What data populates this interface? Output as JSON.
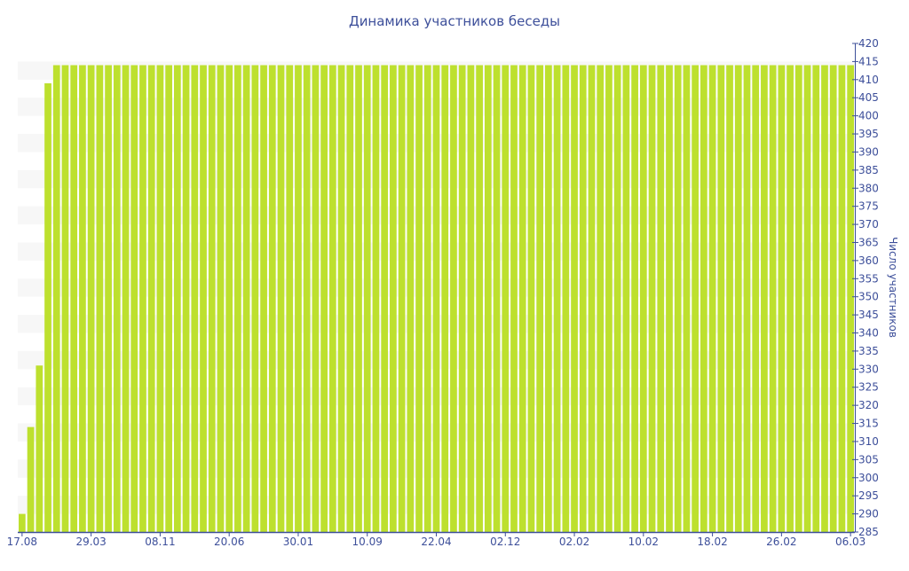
{
  "chart_data": {
    "type": "bar",
    "title": "Динамика участников беседы",
    "ylabel": "Число участников",
    "xlabel": "",
    "ylim": [
      285,
      420
    ],
    "ytick_step": 5,
    "grid": "alternating horizontal bands",
    "y_axis_side": "right",
    "bar_color": "#bde02e",
    "text_color": "#3d4f9a",
    "x_tick_labels": [
      {
        "index": 0,
        "label": "17.08"
      },
      {
        "index": 8,
        "label": "29.03"
      },
      {
        "index": 16,
        "label": "08.11"
      },
      {
        "index": 24,
        "label": "20.06"
      },
      {
        "index": 32,
        "label": "30.01"
      },
      {
        "index": 40,
        "label": "10.09"
      },
      {
        "index": 48,
        "label": "22.04"
      },
      {
        "index": 56,
        "label": "02.12"
      },
      {
        "index": 64,
        "label": "02.02"
      },
      {
        "index": 72,
        "label": "10.02"
      },
      {
        "index": 80,
        "label": "18.02"
      },
      {
        "index": 88,
        "label": "26.02"
      },
      {
        "index": 96,
        "label": "06.03"
      }
    ],
    "values": [
      290,
      314,
      331,
      409,
      414,
      414,
      414,
      414,
      414,
      414,
      414,
      414,
      414,
      414,
      414,
      414,
      414,
      414,
      414,
      414,
      414,
      414,
      414,
      414,
      414,
      414,
      414,
      414,
      414,
      414,
      414,
      414,
      414,
      414,
      414,
      414,
      414,
      414,
      414,
      414,
      414,
      414,
      414,
      414,
      414,
      414,
      414,
      414,
      414,
      414,
      414,
      414,
      414,
      414,
      414,
      414,
      414,
      414,
      414,
      414,
      414,
      414,
      414,
      414,
      414,
      414,
      414,
      414,
      414,
      414,
      414,
      414,
      414,
      414,
      414,
      414,
      414,
      414,
      414,
      414,
      414,
      414,
      414,
      414,
      414,
      414,
      414,
      414,
      414,
      414,
      414,
      414,
      414,
      414,
      414,
      414,
      414
    ]
  }
}
